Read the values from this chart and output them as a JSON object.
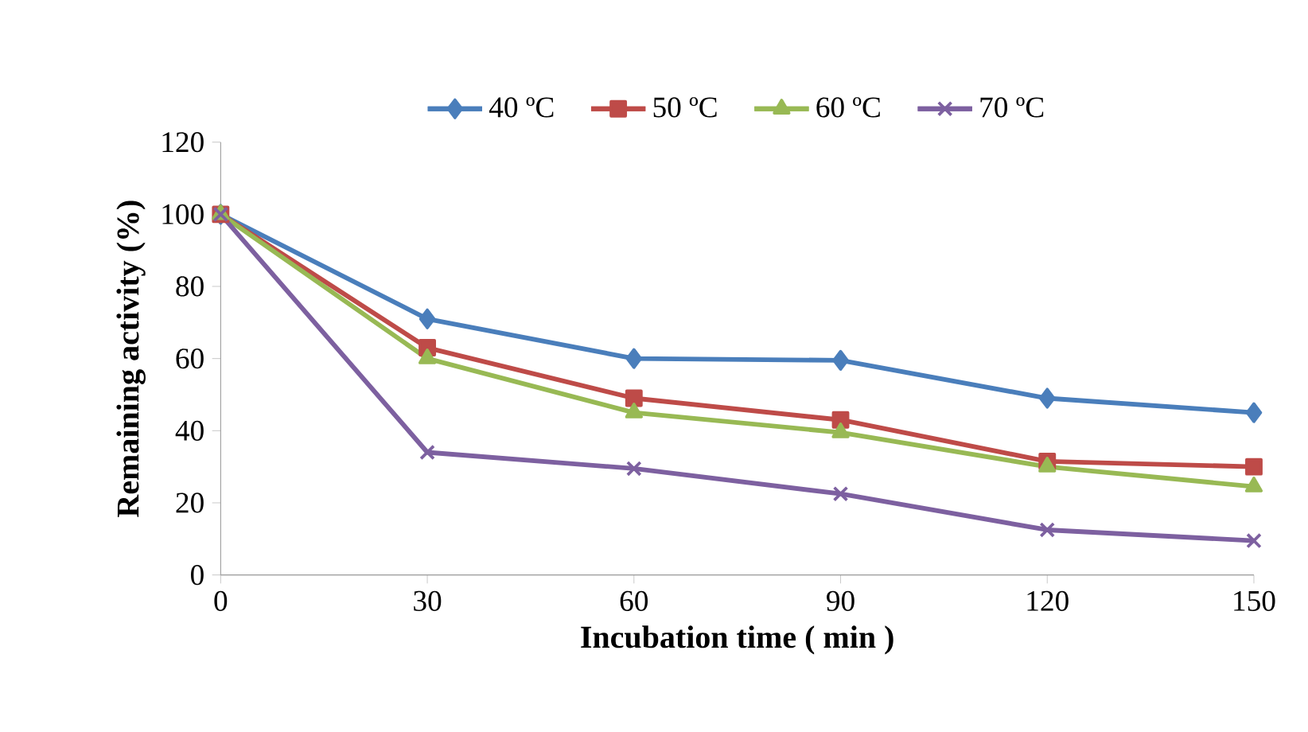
{
  "chart_data": {
    "type": "line",
    "xlabel": "Incubation time ( min )",
    "ylabel": "Remaining activity (%)",
    "x": [
      0,
      30,
      60,
      90,
      120,
      150
    ],
    "series": [
      {
        "name": "40 ºC",
        "color": "#4a7ebb",
        "marker": "diamond",
        "values": [
          100,
          71,
          60,
          59.5,
          49,
          45
        ]
      },
      {
        "name": "50 ºC",
        "color": "#be4b48",
        "marker": "square",
        "values": [
          100,
          63,
          49,
          43,
          31.5,
          30
        ]
      },
      {
        "name": "60 ºC",
        "color": "#98b954",
        "marker": "triangle",
        "values": [
          100,
          60,
          45,
          39.5,
          30,
          24.5
        ]
      },
      {
        "name": "70 ºC",
        "color": "#7d60a0",
        "marker": "cross",
        "values": [
          100,
          34,
          29.5,
          22.5,
          12.5,
          9.5
        ]
      }
    ],
    "xlim": [
      0,
      150
    ],
    "ylim": [
      0,
      120
    ],
    "xticks": [
      0,
      30,
      60,
      90,
      120,
      150
    ],
    "yticks": [
      0,
      20,
      40,
      60,
      80,
      100,
      120
    ],
    "grid": false,
    "legend": "top",
    "line_style": "solid"
  }
}
